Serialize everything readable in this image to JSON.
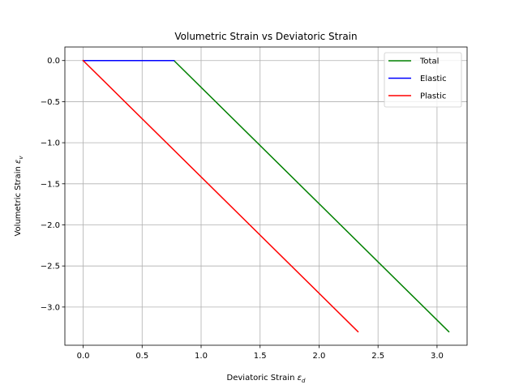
{
  "chart_data": {
    "type": "line",
    "title": "Volumetric Strain vs Deviatoric Strain",
    "xlabel": {
      "main": "Deviatoric Strain ",
      "symbol": "ε",
      "sub": "d"
    },
    "ylabel": {
      "main": "Volumetric Strain ",
      "symbol": "ε",
      "sub": "v"
    },
    "xlim": [
      -0.155,
      3.255
    ],
    "ylim": [
      -3.465,
      0.165
    ],
    "xticks": [
      0.0,
      0.5,
      1.0,
      1.5,
      2.0,
      2.5,
      3.0
    ],
    "xtick_labels": [
      "0.0",
      "0.5",
      "1.0",
      "1.5",
      "2.0",
      "2.5",
      "3.0"
    ],
    "yticks": [
      0.0,
      -0.5,
      -1.0,
      -1.5,
      -2.0,
      -2.5,
      -3.0
    ],
    "ytick_labels": [
      "0.0",
      "−0.5",
      "−1.0",
      "−1.5",
      "−2.0",
      "−2.5",
      "−3.0"
    ],
    "grid": true,
    "legend_position": "top-right",
    "series": [
      {
        "name": "Total",
        "color": "#008000",
        "x": [
          0.0,
          0.77,
          3.1
        ],
        "y": [
          0.0,
          0.0,
          -3.3
        ]
      },
      {
        "name": "Elastic",
        "color": "#0000ff",
        "x": [
          0.0,
          0.77
        ],
        "y": [
          0.0,
          0.0
        ]
      },
      {
        "name": "Plastic",
        "color": "#ff0000",
        "x": [
          0.0,
          2.33
        ],
        "y": [
          0.0,
          -3.3
        ]
      }
    ]
  }
}
